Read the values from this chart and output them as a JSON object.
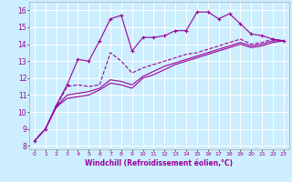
{
  "background_color": "#cceeff",
  "grid_color": "#ffffff",
  "line_color": "#990099",
  "xlabel": "Windchill (Refroidissement éolien,°C)",
  "xlabel_fontsize": 5.5,
  "xtick_fontsize": 4.5,
  "ytick_fontsize": 5.5,
  "ylim": [
    7.8,
    16.5
  ],
  "xlim": [
    -0.5,
    23.5
  ],
  "yticks": [
    8,
    9,
    10,
    11,
    12,
    13,
    14,
    15,
    16
  ],
  "xticks": [
    0,
    1,
    2,
    3,
    4,
    5,
    6,
    7,
    8,
    9,
    10,
    11,
    12,
    13,
    14,
    15,
    16,
    17,
    18,
    19,
    20,
    21,
    22,
    23
  ],
  "series": [
    {
      "x": [
        0,
        1,
        2,
        3,
        4,
        5,
        6,
        7,
        8,
        9,
        10,
        11,
        12,
        13,
        14,
        15,
        16,
        17,
        18,
        19,
        20,
        21,
        22,
        23
      ],
      "y": [
        8.3,
        9.0,
        10.4,
        11.6,
        13.1,
        13.0,
        14.2,
        15.5,
        15.7,
        13.6,
        14.4,
        14.4,
        14.5,
        14.8,
        14.8,
        15.9,
        15.9,
        15.5,
        15.8,
        15.2,
        14.6,
        14.5,
        14.3,
        14.2
      ],
      "marker": "+",
      "linestyle": "-",
      "markersize": 3,
      "linewidth": 0.8
    },
    {
      "x": [
        0,
        1,
        2,
        3,
        4,
        5,
        6,
        7,
        8,
        9,
        10,
        11,
        12,
        13,
        14,
        15,
        16,
        17,
        18,
        19,
        20,
        21,
        22,
        23
      ],
      "y": [
        8.3,
        9.0,
        10.3,
        11.5,
        11.6,
        11.5,
        11.6,
        13.5,
        13.0,
        12.3,
        12.6,
        12.8,
        13.0,
        13.2,
        13.4,
        13.5,
        13.7,
        13.9,
        14.1,
        14.3,
        14.0,
        14.1,
        14.3,
        14.2
      ],
      "marker": "None",
      "linestyle": "--",
      "markersize": 0,
      "linewidth": 0.8
    },
    {
      "x": [
        0,
        1,
        2,
        3,
        4,
        5,
        6,
        7,
        8,
        9,
        10,
        11,
        12,
        13,
        14,
        15,
        16,
        17,
        18,
        19,
        20,
        21,
        22,
        23
      ],
      "y": [
        8.3,
        9.0,
        10.3,
        11.0,
        11.1,
        11.2,
        11.4,
        11.9,
        11.8,
        11.6,
        12.1,
        12.4,
        12.7,
        12.9,
        13.1,
        13.3,
        13.5,
        13.7,
        13.9,
        14.1,
        13.9,
        14.0,
        14.2,
        14.2
      ],
      "marker": "None",
      "linestyle": "-",
      "markersize": 0,
      "linewidth": 0.8
    },
    {
      "x": [
        0,
        1,
        2,
        3,
        4,
        5,
        6,
        7,
        8,
        9,
        10,
        11,
        12,
        13,
        14,
        15,
        16,
        17,
        18,
        19,
        20,
        21,
        22,
        23
      ],
      "y": [
        8.3,
        9.0,
        10.3,
        10.8,
        10.9,
        11.0,
        11.3,
        11.7,
        11.6,
        11.4,
        12.0,
        12.2,
        12.5,
        12.8,
        13.0,
        13.2,
        13.4,
        13.6,
        13.8,
        14.0,
        13.8,
        13.9,
        14.1,
        14.2
      ],
      "marker": "None",
      "linestyle": "-",
      "markersize": 0,
      "linewidth": 0.8
    }
  ]
}
